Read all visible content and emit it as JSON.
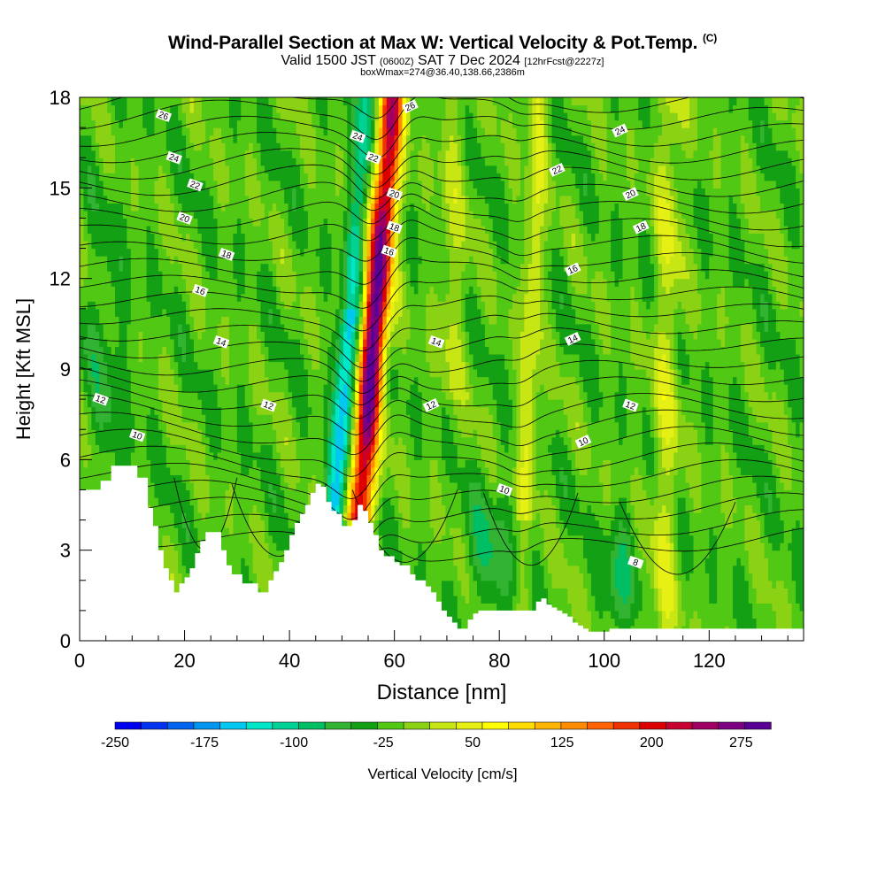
{
  "title": {
    "main": "Wind-Parallel Section at Max W: Vertical Velocity & Pot.Temp.",
    "copyright": "(C)",
    "valid_prefix": "Valid 1500 JST",
    "valid_utc": "(0600Z)",
    "valid_date": "SAT 7 Dec 2024",
    "forecast": "[12hrFcst@2227z]",
    "box_info": "boxWmax=274@36.40,138.66,2386m"
  },
  "chart_data": {
    "type": "heatmap",
    "xlabel": "Distance [nm]",
    "ylabel": "Height [Kft MSL]",
    "xlim": [
      0,
      138
    ],
    "ylim": [
      0,
      18
    ],
    "x_ticks": [
      "0",
      "20",
      "40",
      "60",
      "80",
      "100",
      "120"
    ],
    "y_ticks": [
      "0",
      "3",
      "6",
      "9",
      "12",
      "15",
      "18"
    ],
    "colorbar": {
      "label": "Vertical Velocity [cm/s]",
      "tick_labels": [
        "-250",
        "-175",
        "-100",
        "-25",
        "50",
        "125",
        "200",
        "275"
      ],
      "tick_values": [
        -250,
        -175,
        -100,
        -25,
        50,
        125,
        200,
        275
      ],
      "range": [
        -250,
        300
      ],
      "colors": [
        "#0000f0",
        "#0032f0",
        "#0064f0",
        "#0096f0",
        "#00c8f0",
        "#00e6c8",
        "#00d296",
        "#00be64",
        "#32b432",
        "#14a014",
        "#50c814",
        "#8cd214",
        "#c8e614",
        "#e6f014",
        "#ffff00",
        "#ffdc00",
        "#ffb400",
        "#ff8c00",
        "#ff6400",
        "#f03200",
        "#dc0000",
        "#c80032",
        "#a00064",
        "#7d0082",
        "#5a0096"
      ]
    },
    "series": [
      {
        "name": "Pot.Temp. contours",
        "contour_labels": [
          {
            "value": "26",
            "x": 16,
            "y": 17.4
          },
          {
            "value": "26",
            "x": 63,
            "y": 17.7
          },
          {
            "value": "24",
            "x": 18,
            "y": 16.0
          },
          {
            "value": "24",
            "x": 53,
            "y": 16.7
          },
          {
            "value": "24",
            "x": 103,
            "y": 16.9
          },
          {
            "value": "22",
            "x": 22,
            "y": 15.1
          },
          {
            "value": "22",
            "x": 56,
            "y": 16.0
          },
          {
            "value": "22",
            "x": 91,
            "y": 15.6
          },
          {
            "value": "20",
            "x": 20,
            "y": 14.0
          },
          {
            "value": "20",
            "x": 60,
            "y": 14.8
          },
          {
            "value": "20",
            "x": 105,
            "y": 14.8
          },
          {
            "value": "18",
            "x": 28,
            "y": 12.8
          },
          {
            "value": "18",
            "x": 60,
            "y": 13.7
          },
          {
            "value": "18",
            "x": 107,
            "y": 13.7
          },
          {
            "value": "16",
            "x": 23,
            "y": 11.6
          },
          {
            "value": "16",
            "x": 59,
            "y": 12.9
          },
          {
            "value": "16",
            "x": 94,
            "y": 12.3
          },
          {
            "value": "14",
            "x": 27,
            "y": 9.9
          },
          {
            "value": "14",
            "x": 68,
            "y": 9.9
          },
          {
            "value": "14",
            "x": 94,
            "y": 10.0
          },
          {
            "value": "12",
            "x": 4,
            "y": 8.0
          },
          {
            "value": "12",
            "x": 36,
            "y": 7.8
          },
          {
            "value": "12",
            "x": 67,
            "y": 7.8
          },
          {
            "value": "12",
            "x": 105,
            "y": 7.8
          },
          {
            "value": "10",
            "x": 11,
            "y": 6.8
          },
          {
            "value": "10",
            "x": 96,
            "y": 6.6
          },
          {
            "value": "10",
            "x": 81,
            "y": 5.0
          },
          {
            "value": "8",
            "x": 106,
            "y": 2.6
          }
        ]
      }
    ],
    "terrain_kft": [
      [
        0,
        5.0
      ],
      [
        2,
        5.0
      ],
      [
        4,
        5.3
      ],
      [
        6,
        5.8
      ],
      [
        10,
        5.8
      ],
      [
        11,
        5.4
      ],
      [
        13,
        4.4
      ],
      [
        14,
        3.8
      ],
      [
        15,
        3.0
      ],
      [
        16,
        2.4
      ],
      [
        17,
        2.0
      ],
      [
        18,
        1.6
      ],
      [
        19,
        1.9
      ],
      [
        20,
        2.1
      ],
      [
        21,
        2.4
      ],
      [
        22,
        2.9
      ],
      [
        23,
        3.3
      ],
      [
        24,
        3.6
      ],
      [
        26,
        3.6
      ],
      [
        27,
        3.0
      ],
      [
        28,
        2.5
      ],
      [
        29,
        2.2
      ],
      [
        31,
        1.9
      ],
      [
        33,
        1.9
      ],
      [
        34,
        1.6
      ],
      [
        35,
        1.6
      ],
      [
        36,
        2.0
      ],
      [
        37,
        2.3
      ],
      [
        38,
        2.6
      ],
      [
        39,
        3.0
      ],
      [
        40,
        3.5
      ],
      [
        41,
        3.9
      ],
      [
        42,
        4.2
      ],
      [
        43,
        4.5
      ],
      [
        44,
        4.9
      ],
      [
        45,
        5.2
      ],
      [
        46,
        5.1
      ],
      [
        47,
        4.6
      ],
      [
        48,
        4.3
      ],
      [
        49,
        4.2
      ],
      [
        50,
        3.8
      ],
      [
        51,
        3.8
      ],
      [
        52,
        4.0
      ],
      [
        53,
        4.5
      ],
      [
        54,
        4.3
      ],
      [
        55,
        3.9
      ],
      [
        56,
        3.5
      ],
      [
        57,
        3.0
      ],
      [
        58,
        2.8
      ],
      [
        60,
        2.6
      ],
      [
        61,
        2.5
      ],
      [
        62,
        2.5
      ],
      [
        63,
        2.2
      ],
      [
        64,
        2.0
      ],
      [
        66,
        1.8
      ],
      [
        67,
        1.6
      ],
      [
        68,
        1.3
      ],
      [
        69,
        1.0
      ],
      [
        70,
        0.8
      ],
      [
        71,
        0.6
      ],
      [
        72,
        0.4
      ],
      [
        73,
        0.4
      ],
      [
        74,
        0.7
      ],
      [
        75,
        0.9
      ],
      [
        76,
        1.0
      ],
      [
        86,
        1.0
      ],
      [
        87,
        1.3
      ],
      [
        88,
        1.4
      ],
      [
        89,
        1.2
      ],
      [
        90,
        1.1
      ],
      [
        91,
        1.0
      ],
      [
        92,
        0.9
      ],
      [
        93,
        0.8
      ],
      [
        94,
        0.6
      ],
      [
        95,
        0.5
      ],
      [
        96,
        0.4
      ],
      [
        97,
        0.3
      ],
      [
        100,
        0.3
      ],
      [
        101,
        0.4
      ],
      [
        138,
        0.4
      ]
    ]
  }
}
